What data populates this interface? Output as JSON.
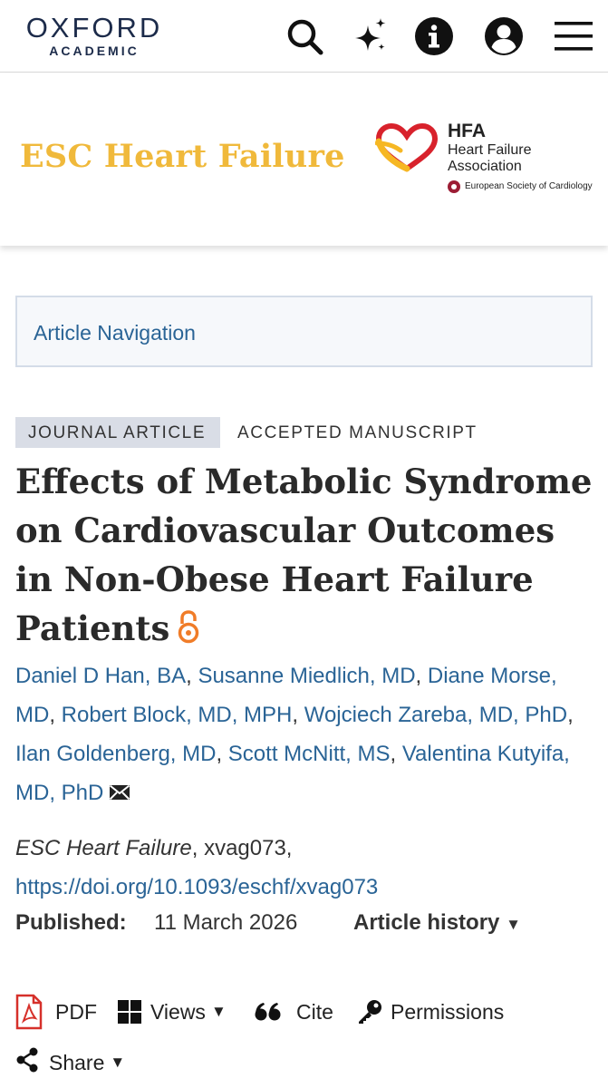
{
  "brand": {
    "line1": "OXFORD",
    "line2": "ACADEMIC"
  },
  "top_icons": [
    "search-icon",
    "sparkle-icon",
    "info-icon",
    "account-icon",
    "menu-icon"
  ],
  "journal": {
    "title": "ESC Heart Failure",
    "hfa_abbrev": "HFA",
    "hfa_line1": "Heart Failure",
    "hfa_line2": "Association",
    "esc_name": "European Society of Cardiology"
  },
  "article_nav_label": "Article Navigation",
  "tags": {
    "type": "JOURNAL ARTICLE",
    "status": "ACCEPTED MANUSCRIPT"
  },
  "article_title": "Effects of Metabolic Syndrome on Cardiovascular Outcomes in Non-Obese Heart Failure Patients",
  "authors": [
    "Daniel D Han, BA",
    "Susanne Miedlich, MD",
    "Diane Morse, MD",
    "Robert Block, MD, MPH",
    "Wojciech Zareba, MD, PhD",
    "Ilan Goldenberg, MD",
    "Scott McNitt, MS",
    "Valentina Kutyifa, MD, PhD"
  ],
  "citation": {
    "journal": "ESC Heart Failure",
    "article_id": ", xvag073,",
    "doi_url": "https://doi.org/10.1093/eschf/xvag073"
  },
  "published": {
    "label": "Published:",
    "date": "11 March 2026",
    "history_label": "Article history"
  },
  "toolbar": {
    "pdf": "PDF",
    "views": "Views",
    "cite": "Cite",
    "permissions": "Permissions",
    "share": "Share"
  },
  "colors": {
    "journal_gold": "#f0b93b",
    "link_blue": "#2a6496",
    "oa_orange": "#f07c28",
    "pdf_red": "#d6302a",
    "brand_navy": "#1c2b4a"
  }
}
